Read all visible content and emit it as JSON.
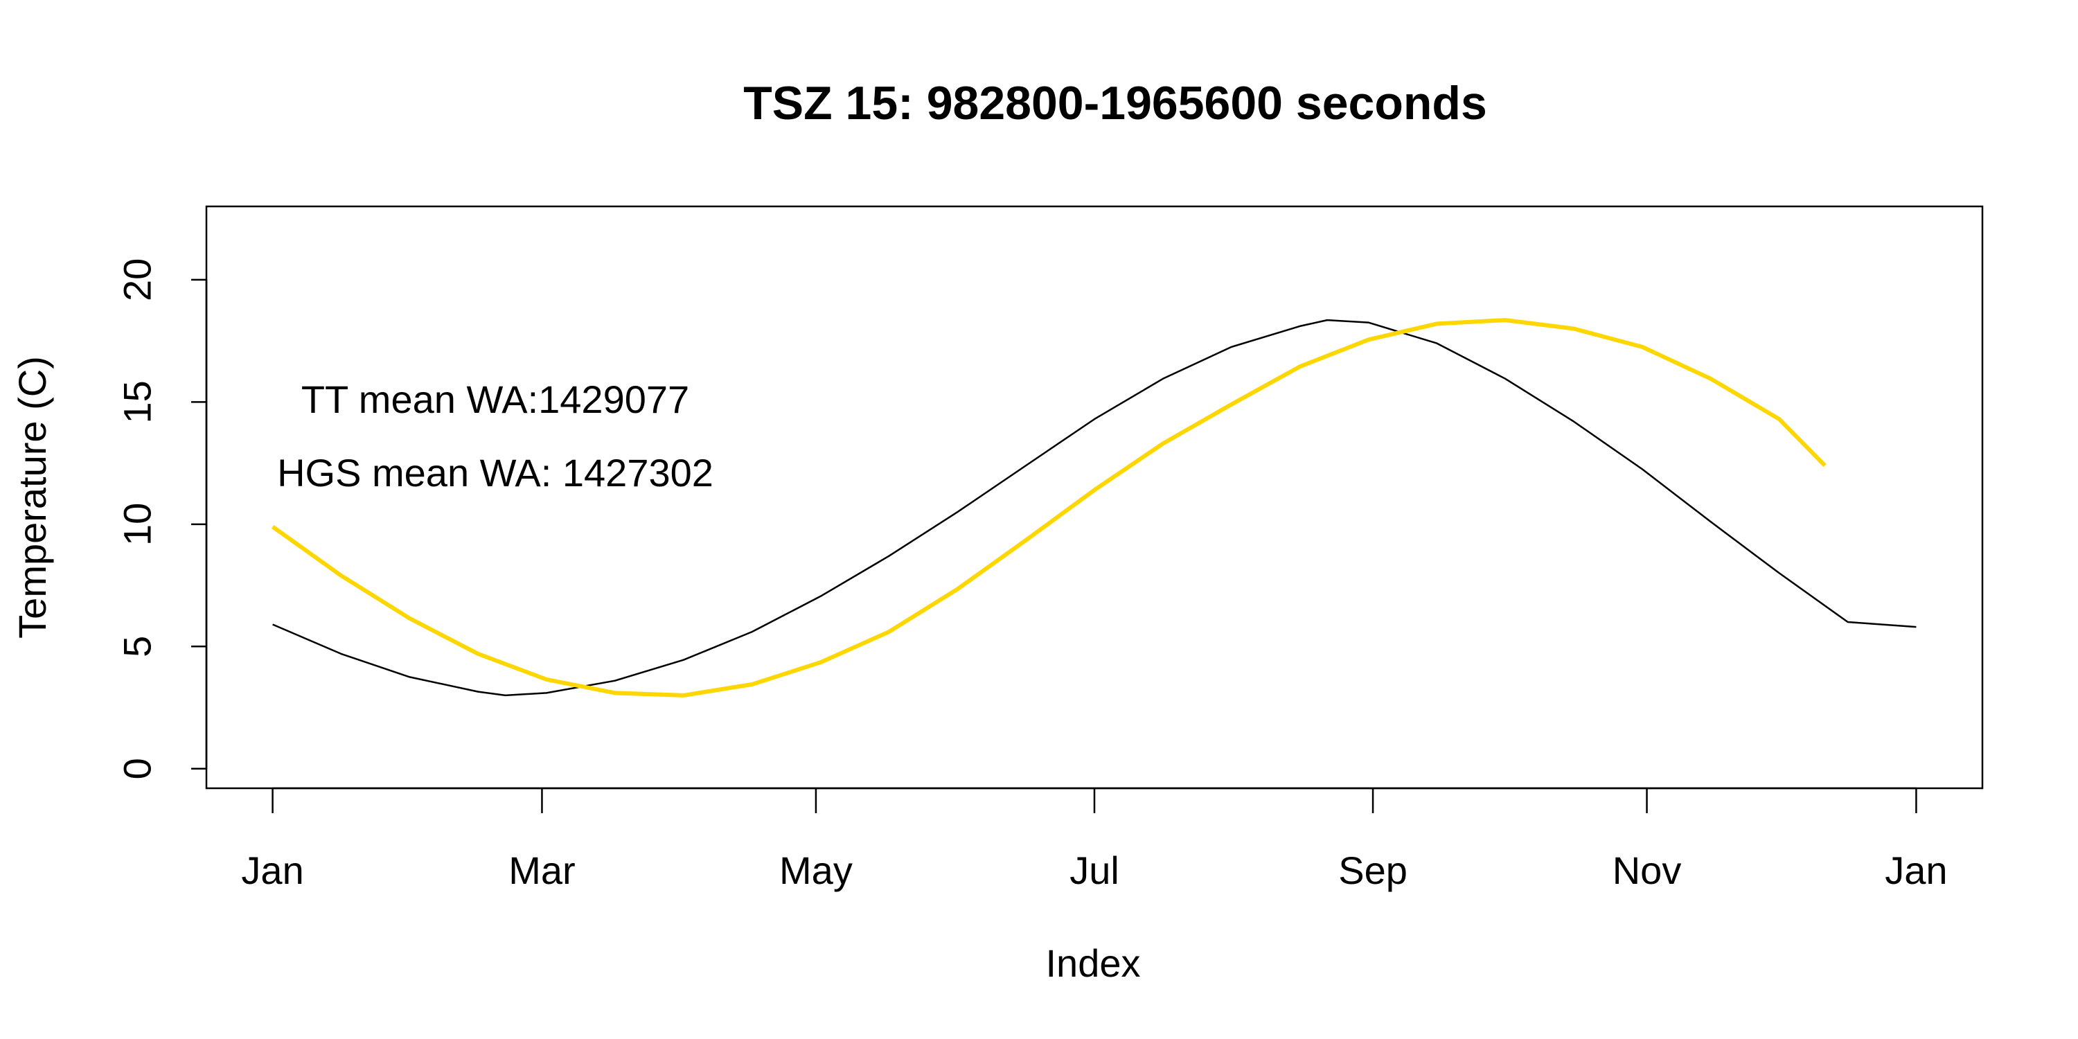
{
  "chart_data": {
    "type": "line",
    "title": "TSZ 15: 982800-1965600 seconds",
    "xlabel": "Index",
    "ylabel": "Temperature (C)",
    "x_axis": {
      "ticks": [
        "Jan",
        "Mar",
        "May",
        "Jul",
        "Sep",
        "Nov",
        "Jan"
      ],
      "tick_days": [
        0,
        59,
        119,
        180,
        241,
        301,
        360
      ],
      "range_days": [
        -14.5,
        374.5
      ]
    },
    "ylim": [
      -0.8,
      23
    ],
    "y_ticks": [
      "0",
      "5",
      "10",
      "15",
      "20"
    ],
    "y_tick_values": [
      0,
      5,
      10,
      15,
      20
    ],
    "grid": false,
    "legend": "none",
    "annotations": [
      "TT mean WA:1429077",
      "HGS mean WA: 1427302"
    ],
    "series": [
      {
        "color": "#000000",
        "x_days": [
          0,
          15,
          30,
          45,
          51,
          60,
          75,
          90,
          105,
          120,
          135,
          150,
          165,
          180,
          195,
          210,
          225,
          231,
          240,
          255,
          270,
          285,
          300,
          315,
          330,
          345,
          360
        ],
        "values": [
          5.9,
          4.7,
          3.75,
          3.15,
          3.0,
          3.1,
          3.6,
          4.45,
          5.6,
          7.05,
          8.7,
          10.5,
          12.4,
          14.3,
          15.95,
          17.25,
          18.1,
          18.35,
          18.25,
          17.4,
          15.95,
          14.2,
          12.25,
          10.1,
          8.0,
          6.0,
          5.8
        ]
      },
      {
        "color": "#FFD700",
        "x_days": [
          0,
          15,
          30,
          45,
          60,
          75,
          90,
          105,
          120,
          135,
          150,
          165,
          180,
          195,
          210,
          225,
          240,
          255,
          270,
          285,
          300,
          315,
          330,
          340
        ],
        "values": [
          9.9,
          7.9,
          6.15,
          4.7,
          3.65,
          3.1,
          3.0,
          3.45,
          4.35,
          5.6,
          7.35,
          9.35,
          11.4,
          13.3,
          14.9,
          16.45,
          17.55,
          18.2,
          18.35,
          18.0,
          17.25,
          15.95,
          14.3,
          12.4
        ]
      }
    ]
  }
}
